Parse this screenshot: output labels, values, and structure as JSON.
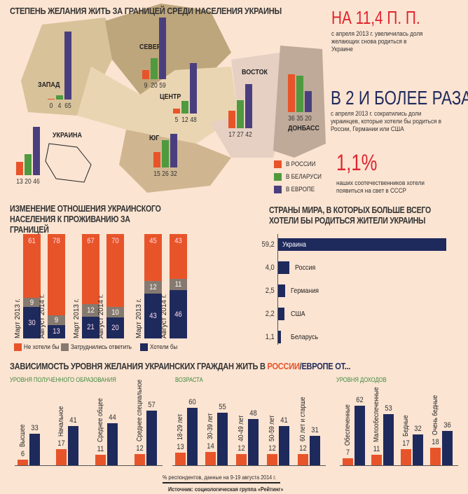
{
  "colors": {
    "russia": "#e8542a",
    "belarus": "#4f9a3e",
    "europe": "#4a3f7e",
    "dont_want": "#e8542a",
    "unsure": "#867a70",
    "want": "#1f2a5c",
    "navy": "#1f2a5c",
    "red": "#e0252f"
  },
  "map": {
    "title": "СТЕПЕНЬ ЖЕЛАНИЯ ЖИТЬ ЗА ГРАНИЦЕЙ СРЕДИ НАСЕЛЕНИЯ УКРАИНЫ",
    "legend": [
      "В РОССИИ",
      "В БЕЛАРУСИ",
      "В ЕВРОПЕ"
    ]
  },
  "facts": [
    {
      "big": "НА 11,4 П. П.",
      "text": "с апреля 2013 г. увеличилась доля желающих снова родиться в Украине"
    },
    {
      "big": "В 2 И БОЛЕЕ РАЗА",
      "text": "с апреля 2013 г. сократились доли украинцев, которые хотели бы родиться в России, Германии или США"
    },
    {
      "big": "1,1%",
      "text": "наших соотечественников хотели появиться на свет в СССР"
    }
  ],
  "chart_data": [
    {
      "type": "bar",
      "title": "СТЕПЕНЬ ЖЕЛАНИЯ ЖИТЬ ЗА ГРАНИЦЕЙ СРЕДИ НАСЕЛЕНИЯ УКРАИНЫ",
      "categories": [
        "ЗАПАД",
        "СЕВЕР",
        "ЦЕНТР",
        "ВОСТОК",
        "ДОНБАСС",
        "ЮГ",
        "УКРАИНА"
      ],
      "series": [
        {
          "name": "В РОССИИ",
          "values": [
            0,
            9,
            5,
            17,
            36,
            15,
            13
          ]
        },
        {
          "name": "В БЕЛАРУСИ",
          "values": [
            4,
            20,
            12,
            27,
            35,
            26,
            20
          ]
        },
        {
          "name": "В ЕВРОПЕ",
          "values": [
            65,
            59,
            48,
            42,
            20,
            32,
            46
          ]
        }
      ]
    },
    {
      "type": "bar",
      "stacked": true,
      "title": "ИЗМЕНЕНИЕ ОТНОШЕНИЯ УКРАИНСКОГО НАСЕЛЕНИЯ К ПРОЖИВАНИЮ ЗА ГРАНИЦЕЙ",
      "categories": [
        "Март 2013 г.",
        "Август 2014 г.",
        "Март 2013 г.",
        "Август 2014 г.",
        "Март 2013 г.",
        "Август 2014 г."
      ],
      "series": [
        {
          "name": "Хотели бы",
          "values": [
            30,
            13,
            21,
            20,
            43,
            46
          ]
        },
        {
          "name": "Затруднились ответить",
          "values": [
            9,
            9,
            12,
            10,
            12,
            11
          ]
        },
        {
          "name": "Не хотели бы",
          "values": [
            61,
            78,
            67,
            70,
            45,
            43
          ]
        }
      ],
      "legend": [
        "Не хотели бы",
        "Затруднились ответить",
        "Хотели бы"
      ]
    },
    {
      "type": "bar",
      "orientation": "horizontal",
      "title": "СТРАНЫ МИРА, В КОТОРЫХ БОЛЬШЕ ВСЕГО ХОТЕЛИ БЫ РОДИТЬСЯ ЖИТЕЛИ УКРАИНЫ",
      "categories": [
        "Украина",
        "Россия",
        "Германия",
        "США",
        "Беларусь"
      ],
      "values": [
        59.2,
        4.0,
        2.5,
        2.2,
        1.1
      ],
      "value_labels": [
        "59,2",
        "4,0",
        "2,5",
        "2,2",
        "1,1"
      ]
    },
    {
      "type": "bar",
      "title": "ЗАВИСИМОСТЬ УРОВНЯ ЖЕЛАНИЯ УКРАИНСКИХ ГРАЖДАН ЖИТЬ В РОССИИ/ЕВРОПЕ ОТ...",
      "groups": [
        {
          "subtitle": "УРОВНЯ ПОЛУЧЕННОГО ОБРАЗОВАНИЯ",
          "categories": [
            "Высшее",
            "Начальное",
            "Среднее общее",
            "Среднее специальное"
          ],
          "russia": [
            6,
            17,
            11,
            12
          ],
          "europe": [
            33,
            41,
            44,
            57
          ]
        },
        {
          "subtitle": "ВОЗРАСТА",
          "categories": [
            "18-29 лет",
            "30-39 лет",
            "40-49 лет",
            "50-59 лет",
            "60 лет и старше"
          ],
          "russia": [
            13,
            14,
            12,
            12,
            12
          ],
          "europe": [
            60,
            55,
            48,
            41,
            31
          ]
        },
        {
          "subtitle": "УРОВНЯ ДОХОДОВ",
          "categories": [
            "Обеспеченные",
            "Малообеспеченные",
            "Бедные",
            "Очень бедные"
          ],
          "russia": [
            7,
            11,
            17,
            18
          ],
          "europe": [
            62,
            53,
            32,
            36
          ]
        }
      ]
    }
  ],
  "bottom": {
    "title_a": "ЗАВИСИМОСТЬ УРОВНЯ ЖЕЛАНИЯ УКРАИНСКИХ ГРАЖДАН ЖИТЬ В ",
    "title_r": "РОССИИ",
    "title_s": "/",
    "title_e": "ЕВРОПЕ ОТ...",
    "note": "% респондентов, данные на 9-19 августа 2014 г.",
    "source": "Источник: социологическая группа «Рейтинг»"
  }
}
